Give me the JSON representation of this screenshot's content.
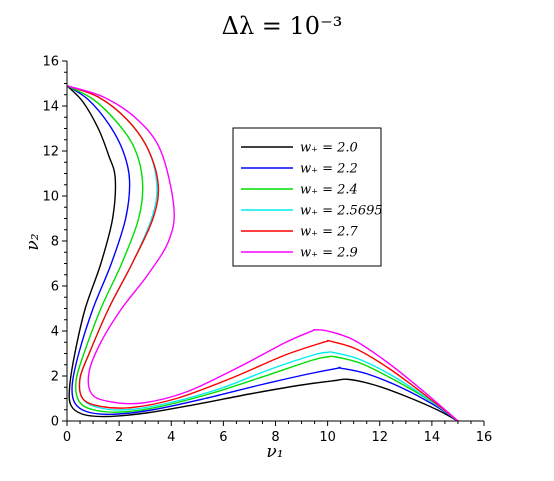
{
  "chart_data": {
    "type": "line",
    "title": "Δλ = 10⁻³",
    "xlabel": "ν₁",
    "ylabel": "ν₂",
    "xlim": [
      0,
      16
    ],
    "ylim": [
      0,
      16
    ],
    "xticks": [
      0,
      2,
      4,
      6,
      8,
      10,
      12,
      14,
      16
    ],
    "yticks": [
      0,
      2,
      4,
      6,
      8,
      10,
      12,
      14,
      16
    ],
    "grid": false,
    "legend_position": "upper-right",
    "series": [
      {
        "name": "w₊ = 2.0",
        "color": "#000000",
        "x": [
          0.0,
          0.6,
          1.2,
          1.6,
          1.85,
          1.75,
          1.3,
          0.7,
          0.3,
          0.1,
          0.15,
          0.6,
          1.5,
          3.0,
          5.0,
          7.0,
          9.0,
          10.3,
          10.8,
          11.8,
          13.0,
          14.2,
          15.0
        ],
        "y": [
          14.9,
          14.2,
          13.0,
          11.8,
          10.8,
          9.0,
          7.0,
          5.0,
          3.0,
          1.5,
          0.7,
          0.3,
          0.2,
          0.35,
          0.75,
          1.2,
          1.6,
          1.8,
          1.85,
          1.6,
          1.1,
          0.5,
          0.0
        ]
      },
      {
        "name": "w₊ = 2.2",
        "color": "#0000ff",
        "x": [
          0.0,
          0.8,
          1.6,
          2.15,
          2.4,
          2.25,
          1.7,
          1.0,
          0.45,
          0.2,
          0.3,
          0.8,
          1.8,
          3.3,
          5.3,
          7.4,
          9.3,
          10.4,
          10.5,
          11.5,
          12.8,
          14.1,
          15.0
        ],
        "y": [
          14.9,
          14.3,
          13.2,
          12.0,
          10.7,
          9.0,
          7.0,
          5.0,
          3.0,
          1.6,
          0.8,
          0.4,
          0.3,
          0.5,
          1.0,
          1.6,
          2.1,
          2.35,
          2.35,
          2.1,
          1.5,
          0.7,
          0.0
        ]
      },
      {
        "name": "w₊ = 2.4",
        "color": "#00dd00",
        "x": [
          0.0,
          1.0,
          1.9,
          2.6,
          2.9,
          2.75,
          2.1,
          1.3,
          0.65,
          0.35,
          0.45,
          1.0,
          2.1,
          3.6,
          5.6,
          7.6,
          9.4,
          10.0,
          10.3,
          11.3,
          12.6,
          14.0,
          15.0
        ],
        "y": [
          14.9,
          14.3,
          13.3,
          12.1,
          10.6,
          9.0,
          7.0,
          5.0,
          3.0,
          1.8,
          0.9,
          0.5,
          0.4,
          0.65,
          1.25,
          2.0,
          2.7,
          2.85,
          2.85,
          2.55,
          1.8,
          0.85,
          0.0
        ]
      },
      {
        "name": "w₊ = 2.5695",
        "color": "#00eeee",
        "x": [
          0.0,
          1.2,
          2.3,
          3.1,
          3.45,
          3.25,
          2.5,
          1.6,
          0.85,
          0.5,
          0.6,
          1.2,
          2.3,
          3.9,
          5.9,
          7.8,
          9.5,
          10.0,
          10.2,
          11.2,
          12.5,
          13.9,
          15.0
        ],
        "y": [
          14.9,
          14.4,
          13.4,
          12.1,
          10.5,
          9.0,
          7.0,
          5.0,
          3.0,
          1.9,
          1.0,
          0.6,
          0.5,
          0.8,
          1.45,
          2.3,
          2.95,
          3.05,
          3.05,
          2.75,
          2.0,
          0.95,
          0.0
        ]
      },
      {
        "name": "w₊ = 2.7",
        "color": "#ff0000",
        "x": [
          0.0,
          1.2,
          2.3,
          3.1,
          3.5,
          3.3,
          2.5,
          1.6,
          0.85,
          0.5,
          0.6,
          1.3,
          2.5,
          4.2,
          6.3,
          8.3,
          9.7,
          10.0,
          10.1,
          11.1,
          12.4,
          13.8,
          15.0
        ],
        "y": [
          14.9,
          14.4,
          13.4,
          12.1,
          10.5,
          9.0,
          7.0,
          5.0,
          3.0,
          1.9,
          1.0,
          0.65,
          0.6,
          1.0,
          1.9,
          2.9,
          3.45,
          3.55,
          3.55,
          3.2,
          2.3,
          1.1,
          0.0
        ]
      },
      {
        "name": "w₊ = 2.9",
        "color": "#ff00ff",
        "x": [
          0.0,
          1.4,
          2.7,
          3.6,
          4.1,
          3.9,
          3.1,
          2.1,
          1.3,
          0.85,
          0.95,
          1.7,
          2.9,
          4.6,
          6.6,
          8.4,
          9.4,
          9.5,
          10.0,
          11.0,
          12.3,
          13.7,
          15.0
        ],
        "y": [
          14.9,
          14.4,
          13.4,
          12.0,
          9.5,
          8.0,
          6.5,
          5.0,
          3.5,
          2.2,
          1.2,
          0.85,
          0.8,
          1.3,
          2.4,
          3.5,
          4.0,
          4.05,
          4.0,
          3.6,
          2.6,
          1.3,
          0.0
        ]
      }
    ]
  }
}
